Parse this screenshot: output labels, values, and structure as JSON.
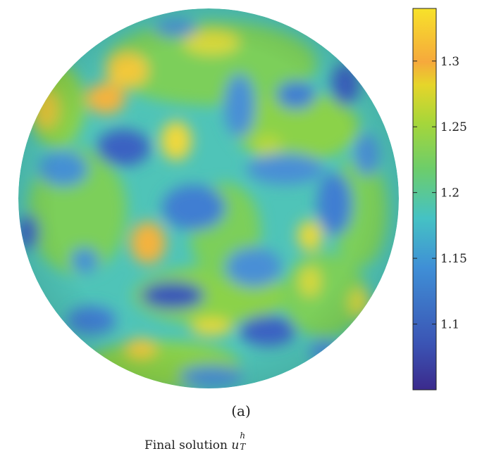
{
  "colorbar": {
    "ticks": [
      "1.3",
      "1.25",
      "1.2",
      "1.15",
      "1.1"
    ],
    "min": 1.05,
    "max": 1.34,
    "colors": [
      "#3b2a8c",
      "#3b54b4",
      "#3f8fd6",
      "#45c2c4",
      "#6dcd6a",
      "#a6d63a",
      "#e6d52a",
      "#f6a93c",
      "#f7e22a"
    ]
  },
  "subfigure_label": "(a)",
  "caption": {
    "text": "Final solution",
    "symbol": "u",
    "superscript": "h",
    "subscript": "T"
  }
}
